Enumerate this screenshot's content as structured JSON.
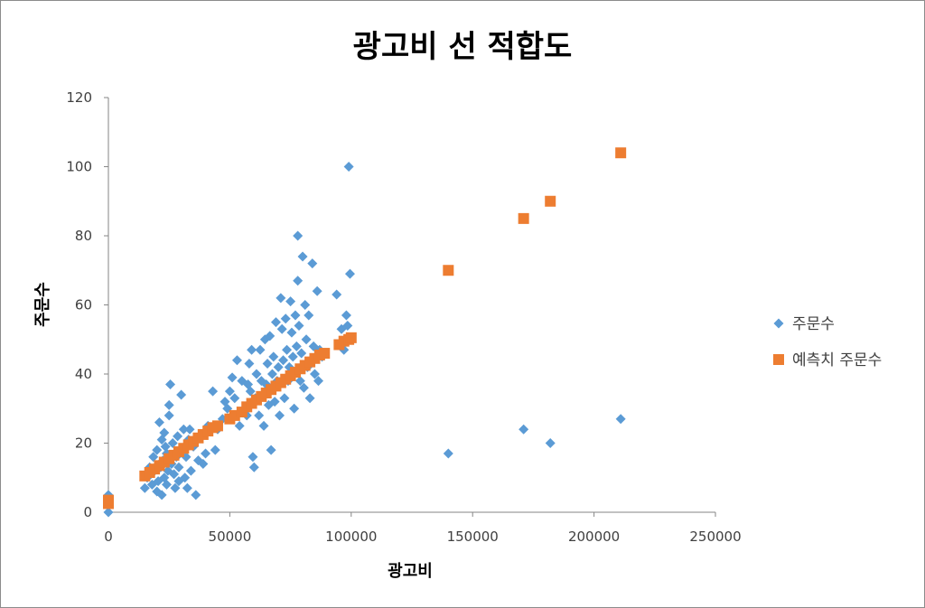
{
  "chart_data": {
    "type": "scatter",
    "title": "광고비 선 적합도",
    "xlabel": "광고비",
    "ylabel": "주문수",
    "xlim": [
      0,
      250000
    ],
    "ylim": [
      0,
      120
    ],
    "x_ticks": [
      "0",
      "50000",
      "100000",
      "150000",
      "200000",
      "250000"
    ],
    "y_ticks": [
      "0",
      "20",
      "40",
      "60",
      "80",
      "100",
      "120"
    ],
    "grid": false,
    "legend_position": "right",
    "series": [
      {
        "name": "주문수",
        "marker": "diamond",
        "color": "#5B9BD5",
        "points": [
          [
            0,
            0
          ],
          [
            0,
            2
          ],
          [
            0,
            3
          ],
          [
            0,
            5
          ],
          [
            15000,
            7
          ],
          [
            16000,
            10
          ],
          [
            17000,
            13
          ],
          [
            18000,
            8
          ],
          [
            18500,
            16
          ],
          [
            19000,
            12
          ],
          [
            20000,
            6
          ],
          [
            20000,
            18
          ],
          [
            20500,
            9
          ],
          [
            21000,
            26
          ],
          [
            21500,
            13
          ],
          [
            22000,
            5
          ],
          [
            22000,
            21
          ],
          [
            22500,
            15
          ],
          [
            23000,
            10
          ],
          [
            23000,
            23
          ],
          [
            23500,
            19
          ],
          [
            24000,
            8
          ],
          [
            24000,
            17
          ],
          [
            24500,
            12
          ],
          [
            25000,
            28
          ],
          [
            25000,
            31
          ],
          [
            25500,
            37
          ],
          [
            26000,
            14
          ],
          [
            26500,
            20
          ],
          [
            27000,
            11
          ],
          [
            27500,
            7
          ],
          [
            28000,
            16
          ],
          [
            28500,
            22
          ],
          [
            29000,
            13
          ],
          [
            29000,
            9
          ],
          [
            30000,
            18
          ],
          [
            30000,
            34
          ],
          [
            31000,
            24
          ],
          [
            31500,
            10
          ],
          [
            32000,
            16
          ],
          [
            32500,
            7
          ],
          [
            33000,
            21
          ],
          [
            33500,
            24
          ],
          [
            34000,
            12
          ],
          [
            35000,
            19
          ],
          [
            36000,
            5
          ],
          [
            37000,
            15
          ],
          [
            38000,
            22
          ],
          [
            39000,
            14
          ],
          [
            40000,
            17
          ],
          [
            41000,
            25
          ],
          [
            43000,
            35
          ],
          [
            44000,
            18
          ],
          [
            45000,
            24
          ],
          [
            47000,
            27
          ],
          [
            48000,
            32
          ],
          [
            49000,
            30
          ],
          [
            50000,
            35
          ],
          [
            51000,
            39
          ],
          [
            52000,
            33
          ],
          [
            53000,
            44
          ],
          [
            54000,
            25
          ],
          [
            55000,
            38
          ],
          [
            56000,
            29
          ],
          [
            57000,
            28
          ],
          [
            57500,
            37
          ],
          [
            58000,
            43
          ],
          [
            58500,
            35
          ],
          [
            59000,
            47
          ],
          [
            59500,
            16
          ],
          [
            60000,
            13
          ],
          [
            60500,
            33
          ],
          [
            61000,
            40
          ],
          [
            62000,
            28
          ],
          [
            62500,
            47
          ],
          [
            63000,
            38
          ],
          [
            64000,
            25
          ],
          [
            64500,
            50
          ],
          [
            65000,
            37
          ],
          [
            65500,
            43
          ],
          [
            66000,
            31
          ],
          [
            66500,
            51
          ],
          [
            67000,
            18
          ],
          [
            67500,
            40
          ],
          [
            68000,
            45
          ],
          [
            68500,
            32
          ],
          [
            69000,
            55
          ],
          [
            69500,
            38
          ],
          [
            70000,
            42
          ],
          [
            70500,
            28
          ],
          [
            71000,
            62
          ],
          [
            71500,
            53
          ],
          [
            72000,
            44
          ],
          [
            72500,
            33
          ],
          [
            73000,
            56
          ],
          [
            73500,
            47
          ],
          [
            74000,
            38
          ],
          [
            74500,
            42
          ],
          [
            75000,
            61
          ],
          [
            75500,
            52
          ],
          [
            76000,
            45
          ],
          [
            76500,
            30
          ],
          [
            77000,
            57
          ],
          [
            77500,
            48
          ],
          [
            78000,
            67
          ],
          [
            78000,
            80
          ],
          [
            78500,
            54
          ],
          [
            79000,
            38
          ],
          [
            79500,
            46
          ],
          [
            80000,
            74
          ],
          [
            80500,
            36
          ],
          [
            81000,
            60
          ],
          [
            81500,
            50
          ],
          [
            82000,
            42
          ],
          [
            82500,
            57
          ],
          [
            83000,
            33
          ],
          [
            84000,
            72
          ],
          [
            84500,
            48
          ],
          [
            85000,
            40
          ],
          [
            86000,
            64
          ],
          [
            86500,
            38
          ],
          [
            87000,
            47
          ],
          [
            88000,
            45
          ],
          [
            89000,
            46
          ],
          [
            94000,
            63
          ],
          [
            96000,
            53
          ],
          [
            97000,
            47
          ],
          [
            98000,
            57
          ],
          [
            98500,
            54
          ],
          [
            99000,
            100
          ],
          [
            99500,
            69
          ],
          [
            140000,
            17
          ],
          [
            171000,
            24
          ],
          [
            182000,
            20
          ],
          [
            211000,
            27
          ]
        ]
      },
      {
        "name": "예측치 주문수",
        "marker": "square",
        "color": "#ED7D31",
        "points": [
          [
            0,
            2.5
          ],
          [
            0,
            3.5
          ],
          [
            15000,
            10.5
          ],
          [
            17000,
            11.5
          ],
          [
            19000,
            12.5
          ],
          [
            21000,
            13.5
          ],
          [
            23000,
            14.5
          ],
          [
            25000,
            15.5
          ],
          [
            27000,
            16.5
          ],
          [
            29000,
            17.5
          ],
          [
            31000,
            18.5
          ],
          [
            33000,
            19.5
          ],
          [
            35000,
            20.5
          ],
          [
            37000,
            21.5
          ],
          [
            39000,
            22.5
          ],
          [
            41000,
            23.5
          ],
          [
            43000,
            24.5
          ],
          [
            45000,
            25.0
          ],
          [
            50000,
            27.0
          ],
          [
            52000,
            28.0
          ],
          [
            55000,
            29.0
          ],
          [
            57000,
            30.5
          ],
          [
            59000,
            31.5
          ],
          [
            61000,
            32.5
          ],
          [
            63000,
            33.5
          ],
          [
            65000,
            34.5
          ],
          [
            67000,
            35.5
          ],
          [
            69000,
            36.5
          ],
          [
            71000,
            37.5
          ],
          [
            73000,
            38.5
          ],
          [
            75000,
            39.5
          ],
          [
            77000,
            40.5
          ],
          [
            79000,
            41.5
          ],
          [
            81000,
            42.5
          ],
          [
            83000,
            43.5
          ],
          [
            85000,
            44.5
          ],
          [
            87000,
            45.5
          ],
          [
            89000,
            46.0
          ],
          [
            95000,
            48.5
          ],
          [
            97000,
            49.5
          ],
          [
            99000,
            50.0
          ],
          [
            100000,
            50.5
          ],
          [
            140000,
            70
          ],
          [
            171000,
            85
          ],
          [
            182000,
            90
          ],
          [
            211000,
            104
          ]
        ]
      }
    ]
  }
}
